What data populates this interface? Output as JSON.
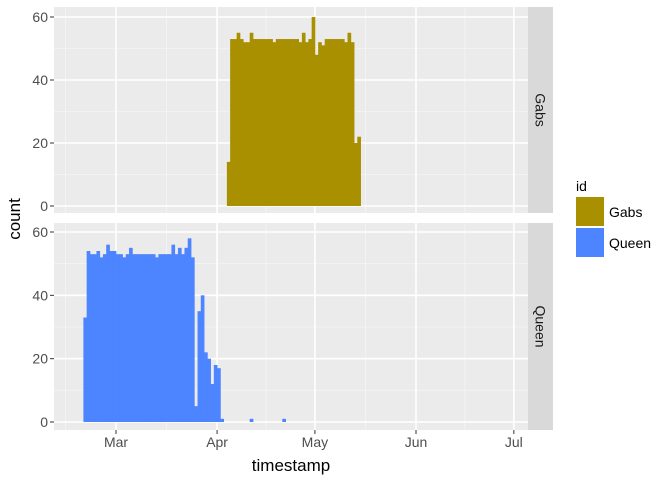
{
  "chart_data": {
    "type": "bar",
    "subtype": "faceted-histogram",
    "xlabel": "timestamp",
    "ylabel": "count",
    "x_ticks": [
      "Mar",
      "Apr",
      "May",
      "Jun",
      "Jul"
    ],
    "y_ticks": [
      "0",
      "20",
      "40",
      "60"
    ],
    "ylim": [
      0,
      62
    ],
    "grid": true,
    "legend_position": "right",
    "legend_title": "id",
    "facets": [
      {
        "label": "Gabs",
        "series": "Gabs",
        "color": "#a89000",
        "bins": [
          [
            "2017-04-04",
            14
          ],
          [
            "2017-04-05",
            53
          ],
          [
            "2017-04-06",
            53
          ],
          [
            "2017-04-07",
            55
          ],
          [
            "2017-04-08",
            53
          ],
          [
            "2017-04-09",
            52
          ],
          [
            "2017-04-10",
            52
          ],
          [
            "2017-04-11",
            55
          ],
          [
            "2017-04-12",
            53
          ],
          [
            "2017-04-13",
            53
          ],
          [
            "2017-04-14",
            53
          ],
          [
            "2017-04-15",
            53
          ],
          [
            "2017-04-16",
            53
          ],
          [
            "2017-04-17",
            53
          ],
          [
            "2017-04-18",
            52
          ],
          [
            "2017-04-19",
            53
          ],
          [
            "2017-04-20",
            53
          ],
          [
            "2017-04-21",
            53
          ],
          [
            "2017-04-22",
            53
          ],
          [
            "2017-04-23",
            53
          ],
          [
            "2017-04-24",
            53
          ],
          [
            "2017-04-25",
            53
          ],
          [
            "2017-04-26",
            52
          ],
          [
            "2017-04-27",
            55
          ],
          [
            "2017-04-28",
            52
          ],
          [
            "2017-04-29",
            53
          ],
          [
            "2017-04-30",
            60
          ],
          [
            "2017-05-01",
            48
          ],
          [
            "2017-05-02",
            52
          ],
          [
            "2017-05-03",
            51
          ],
          [
            "2017-05-04",
            53
          ],
          [
            "2017-05-05",
            53
          ],
          [
            "2017-05-06",
            53
          ],
          [
            "2017-05-07",
            53
          ],
          [
            "2017-05-08",
            53
          ],
          [
            "2017-05-09",
            53
          ],
          [
            "2017-05-10",
            52
          ],
          [
            "2017-05-11",
            55
          ],
          [
            "2017-05-12",
            52
          ],
          [
            "2017-05-13",
            20
          ],
          [
            "2017-05-14",
            22
          ]
        ]
      },
      {
        "label": "Queen",
        "series": "Queen",
        "color": "#4d84ff",
        "bins": [
          [
            "2017-02-19",
            33
          ],
          [
            "2017-02-20",
            54
          ],
          [
            "2017-02-21",
            53
          ],
          [
            "2017-02-22",
            53
          ],
          [
            "2017-02-23",
            54
          ],
          [
            "2017-02-24",
            52
          ],
          [
            "2017-02-25",
            53
          ],
          [
            "2017-02-26",
            56
          ],
          [
            "2017-02-27",
            54
          ],
          [
            "2017-02-28",
            54
          ],
          [
            "2017-03-01",
            53
          ],
          [
            "2017-03-02",
            53
          ],
          [
            "2017-03-03",
            52
          ],
          [
            "2017-03-04",
            53
          ],
          [
            "2017-03-05",
            55
          ],
          [
            "2017-03-06",
            53
          ],
          [
            "2017-03-07",
            53
          ],
          [
            "2017-03-08",
            53
          ],
          [
            "2017-03-09",
            53
          ],
          [
            "2017-03-10",
            53
          ],
          [
            "2017-03-11",
            53
          ],
          [
            "2017-03-12",
            53
          ],
          [
            "2017-03-13",
            52
          ],
          [
            "2017-03-14",
            53
          ],
          [
            "2017-03-15",
            53
          ],
          [
            "2017-03-16",
            53
          ],
          [
            "2017-03-17",
            53
          ],
          [
            "2017-03-18",
            56
          ],
          [
            "2017-03-19",
            53
          ],
          [
            "2017-03-20",
            55
          ],
          [
            "2017-03-21",
            53
          ],
          [
            "2017-03-22",
            55
          ],
          [
            "2017-03-23",
            58
          ],
          [
            "2017-03-24",
            52
          ],
          [
            "2017-03-25",
            5
          ],
          [
            "2017-03-26",
            35
          ],
          [
            "2017-03-27",
            40
          ],
          [
            "2017-03-28",
            22
          ],
          [
            "2017-03-29",
            20
          ],
          [
            "2017-03-30",
            12
          ],
          [
            "2017-03-31",
            18
          ],
          [
            "2017-04-01",
            17
          ],
          [
            "2017-04-02",
            1
          ],
          [
            "2017-04-11",
            1
          ],
          [
            "2017-04-21",
            1
          ]
        ]
      }
    ]
  }
}
